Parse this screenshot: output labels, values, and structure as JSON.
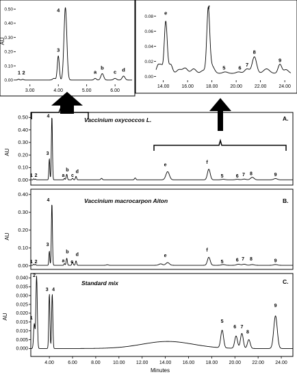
{
  "figure": {
    "x_axis_label": "Minutes",
    "y_axis_label": "AU"
  },
  "chart_data": [
    {
      "id": "inset-left",
      "type": "line",
      "ylabel": "AU",
      "xlim": [
        2.5,
        6.6
      ],
      "ylim": [
        -0.03,
        0.53
      ],
      "xticks": [
        3.0,
        4.0,
        5.0,
        6.0
      ],
      "xtick_labels": [
        "3.00",
        "4.00",
        "5.00",
        "6.00"
      ],
      "yticks": [
        0.0,
        0.1,
        0.2,
        0.3,
        0.4,
        0.5
      ],
      "ytick_labels": [
        "0.00",
        "0.10",
        "0.20",
        "0.30",
        "0.40",
        "0.50"
      ],
      "baseline": 0.0,
      "peaks": [
        [
          2.6,
          0.006,
          0.03
        ],
        [
          2.75,
          0.005,
          0.03
        ],
        [
          3.85,
          0.012,
          0.05
        ],
        [
          4.0,
          0.17,
          0.035
        ],
        [
          4.25,
          0.51,
          0.05
        ],
        [
          5.3,
          0.012,
          0.04
        ],
        [
          5.55,
          0.045,
          0.05
        ],
        [
          6.0,
          0.012,
          0.05
        ],
        [
          6.3,
          0.028,
          0.05
        ]
      ],
      "labels": [
        {
          "text": "1",
          "x": 2.62,
          "y": 0.04
        },
        {
          "text": "2",
          "x": 2.78,
          "y": 0.04
        },
        {
          "text": "3",
          "x": 4.0,
          "y": 0.2
        },
        {
          "text": "4",
          "x": 4.0,
          "y": 0.48
        },
        {
          "text": "a",
          "x": 5.3,
          "y": 0.045
        },
        {
          "text": "b",
          "x": 5.55,
          "y": 0.075
        },
        {
          "text": "c",
          "x": 6.0,
          "y": 0.045
        },
        {
          "text": "d",
          "x": 6.3,
          "y": 0.06
        }
      ]
    },
    {
      "id": "inset-right",
      "type": "line",
      "ylabel": "",
      "xlim": [
        13.4,
        24.5
      ],
      "ylim": [
        -0.005,
        0.095
      ],
      "xticks": [
        14.0,
        16.0,
        18.0,
        20.0,
        22.0,
        24.0
      ],
      "xtick_labels": [
        "14.00",
        "16.00",
        "18.00",
        "20.00",
        "22.00",
        "24.00"
      ],
      "yticks": [
        0.0,
        0.02,
        0.04,
        0.06,
        0.08
      ],
      "ytick_labels": [
        "0.00",
        "0.02",
        "0.04",
        "0.06",
        "0.08"
      ],
      "baseline": 0.004,
      "peaks": [
        [
          13.6,
          0.012,
          0.15
        ],
        [
          13.85,
          0.008,
          0.1
        ],
        [
          14.2,
          0.069,
          0.12
        ],
        [
          14.6,
          0.012,
          0.15
        ],
        [
          15.3,
          0.005,
          0.2
        ],
        [
          15.8,
          0.007,
          0.2
        ],
        [
          16.5,
          0.006,
          0.2
        ],
        [
          17.3,
          0.004,
          0.2
        ],
        [
          17.7,
          0.084,
          0.12
        ],
        [
          18.0,
          0.01,
          0.2
        ],
        [
          19.1,
          0.002,
          0.2
        ],
        [
          20.2,
          0.002,
          0.2
        ],
        [
          20.9,
          0.006,
          0.2
        ],
        [
          21.5,
          0.022,
          0.18
        ],
        [
          22.5,
          0.006,
          0.25
        ],
        [
          23.6,
          0.012,
          0.15
        ],
        [
          24.1,
          0.005,
          0.2
        ]
      ],
      "labels": [
        {
          "text": "e",
          "x": 14.2,
          "y": 0.082
        },
        {
          "text": "f",
          "x": 17.75,
          "y": 0.089
        },
        {
          "text": "5",
          "x": 19.0,
          "y": 0.009
        },
        {
          "text": "6",
          "x": 20.3,
          "y": 0.009
        },
        {
          "text": "7",
          "x": 20.9,
          "y": 0.013
        },
        {
          "text": "8",
          "x": 21.5,
          "y": 0.03
        },
        {
          "text": "9",
          "x": 23.6,
          "y": 0.019
        }
      ]
    },
    {
      "id": "panel-a",
      "type": "line",
      "title": "Vaccinium oxycoccos L.",
      "panel_label": "A.",
      "ylabel": "AU",
      "xlim": [
        2.4,
        25.0
      ],
      "ylim": [
        -0.04,
        0.54
      ],
      "yticks": [
        0.0,
        0.1,
        0.2,
        0.3,
        0.4,
        0.5
      ],
      "ytick_labels": [
        "0.00",
        "0.10",
        "0.20",
        "0.30",
        "0.40",
        "0.50"
      ],
      "baseline": 0.002,
      "peaks": [
        [
          2.65,
          0.008,
          0.04
        ],
        [
          2.8,
          0.006,
          0.04
        ],
        [
          4.0,
          0.17,
          0.04
        ],
        [
          4.22,
          0.51,
          0.045
        ],
        [
          5.3,
          0.012,
          0.04
        ],
        [
          5.5,
          0.045,
          0.05
        ],
        [
          6.0,
          0.012,
          0.05
        ],
        [
          6.3,
          0.028,
          0.05
        ],
        [
          8.5,
          0.012,
          0.06
        ],
        [
          11.4,
          0.015,
          0.06
        ],
        [
          14.2,
          0.065,
          0.15
        ],
        [
          17.75,
          0.085,
          0.12
        ],
        [
          19.0,
          0.004,
          0.15
        ],
        [
          20.2,
          0.004,
          0.15
        ],
        [
          20.8,
          0.006,
          0.15
        ],
        [
          21.5,
          0.02,
          0.15
        ],
        [
          23.5,
          0.01,
          0.15
        ]
      ],
      "labels": [
        {
          "text": "1",
          "x": 2.45,
          "y": 0.025
        },
        {
          "text": "2",
          "x": 2.85,
          "y": 0.025
        },
        {
          "text": "3",
          "x": 3.85,
          "y": 0.2
        },
        {
          "text": "4",
          "x": 3.9,
          "y": 0.5
        },
        {
          "text": "a",
          "x": 5.2,
          "y": 0.025
        },
        {
          "text": "b",
          "x": 5.55,
          "y": 0.07
        },
        {
          "text": "c",
          "x": 6.0,
          "y": 0.025
        },
        {
          "text": "d",
          "x": 6.4,
          "y": 0.055
        },
        {
          "text": "e",
          "x": 14.0,
          "y": 0.11
        },
        {
          "text": "f",
          "x": 17.6,
          "y": 0.13
        },
        {
          "text": "5",
          "x": 18.9,
          "y": 0.02
        },
        {
          "text": "6",
          "x": 20.2,
          "y": 0.02
        },
        {
          "text": "7",
          "x": 20.75,
          "y": 0.03
        },
        {
          "text": "8",
          "x": 21.4,
          "y": 0.04
        },
        {
          "text": "9",
          "x": 23.5,
          "y": 0.03
        }
      ]
    },
    {
      "id": "panel-b",
      "type": "line",
      "title": "Vaccinium macrocarpon Aiton",
      "panel_label": "B.",
      "ylabel": "AU",
      "xlim": [
        2.4,
        25.0
      ],
      "ylim": [
        -0.02,
        0.43
      ],
      "yticks": [
        0.0,
        0.1,
        0.2,
        0.3,
        0.4
      ],
      "ytick_labels": [
        "0.00",
        "0.10",
        "0.20",
        "0.30",
        "0.40"
      ],
      "baseline": 0.003,
      "peaks": [
        [
          2.65,
          0.006,
          0.04
        ],
        [
          2.8,
          0.005,
          0.04
        ],
        [
          4.0,
          0.08,
          0.04
        ],
        [
          4.22,
          0.35,
          0.045
        ],
        [
          5.3,
          0.01,
          0.04
        ],
        [
          5.5,
          0.04,
          0.05
        ],
        [
          6.0,
          0.02,
          0.05
        ],
        [
          6.3,
          0.025,
          0.05
        ],
        [
          9.0,
          0.003,
          0.08
        ],
        [
          13.6,
          0.008,
          0.15
        ],
        [
          14.2,
          0.015,
          0.15
        ],
        [
          17.75,
          0.045,
          0.12
        ],
        [
          19.0,
          0.004,
          0.15
        ],
        [
          20.3,
          0.006,
          0.15
        ],
        [
          20.8,
          0.006,
          0.15
        ],
        [
          21.5,
          0.004,
          0.15
        ],
        [
          23.5,
          0.004,
          0.15
        ]
      ],
      "labels": [
        {
          "text": "1",
          "x": 2.45,
          "y": 0.015
        },
        {
          "text": "2",
          "x": 2.85,
          "y": 0.015
        },
        {
          "text": "3",
          "x": 3.85,
          "y": 0.11
        },
        {
          "text": "4",
          "x": 3.9,
          "y": 0.36
        },
        {
          "text": "a",
          "x": 5.2,
          "y": 0.02
        },
        {
          "text": "b",
          "x": 5.55,
          "y": 0.07
        },
        {
          "text": "c",
          "x": 5.95,
          "y": 0.015
        },
        {
          "text": "d",
          "x": 6.4,
          "y": 0.055
        },
        {
          "text": "e",
          "x": 14.0,
          "y": 0.05
        },
        {
          "text": "f",
          "x": 17.6,
          "y": 0.08
        },
        {
          "text": "5",
          "x": 18.9,
          "y": 0.015
        },
        {
          "text": "6",
          "x": 20.2,
          "y": 0.025
        },
        {
          "text": "7",
          "x": 20.7,
          "y": 0.03
        },
        {
          "text": "8",
          "x": 21.4,
          "y": 0.03
        },
        {
          "text": "9",
          "x": 23.5,
          "y": 0.02
        }
      ]
    },
    {
      "id": "panel-c",
      "type": "line",
      "title": "Standard mix",
      "panel_label": "C.",
      "ylabel": "AU",
      "xlim": [
        2.4,
        25.0
      ],
      "ylim": [
        -0.0045,
        0.0425
      ],
      "xticks": [
        4.0,
        6.0,
        8.0,
        10.0,
        12.0,
        14.0,
        16.0,
        18.0,
        20.0,
        22.0,
        24.0
      ],
      "xtick_labels": [
        "4.00",
        "6.00",
        "8.00",
        "10.00",
        "12.00",
        "14.00",
        "16.00",
        "18.00",
        "20.00",
        "22.00",
        "24.00"
      ],
      "xlabel": "Minutes",
      "yticks": [
        0.0,
        0.005,
        0.01,
        0.015,
        0.02,
        0.025,
        0.03,
        0.035,
        0.04
      ],
      "ytick_labels": [
        "0.000",
        "0.005",
        "0.010",
        "0.015",
        "0.020",
        "0.025",
        "0.030",
        "0.035",
        "0.040"
      ],
      "baseline": 0.0,
      "hump": [
        14.2,
        0.004,
        2.2
      ],
      "peaks": [
        [
          2.7,
          0.014,
          0.06
        ],
        [
          2.9,
          0.041,
          0.06
        ],
        [
          4.0,
          0.031,
          0.05
        ],
        [
          4.25,
          0.031,
          0.05
        ],
        [
          18.9,
          0.01,
          0.12
        ],
        [
          20.1,
          0.007,
          0.12
        ],
        [
          20.6,
          0.0085,
          0.12
        ],
        [
          21.2,
          0.005,
          0.12
        ],
        [
          23.5,
          0.0185,
          0.15
        ]
      ],
      "labels": [
        {
          "text": "1",
          "x": 2.45,
          "y": 0.0165
        },
        {
          "text": "2",
          "x": 2.7,
          "y": 0.0405
        },
        {
          "text": "3",
          "x": 3.8,
          "y": 0.0325
        },
        {
          "text": "4",
          "x": 4.35,
          "y": 0.0325
        },
        {
          "text": "5",
          "x": 18.9,
          "y": 0.0145
        },
        {
          "text": "6",
          "x": 20.0,
          "y": 0.0115
        },
        {
          "text": "7",
          "x": 20.6,
          "y": 0.0115
        },
        {
          "text": "8",
          "x": 21.1,
          "y": 0.0085
        },
        {
          "text": "9",
          "x": 23.5,
          "y": 0.0235
        }
      ]
    }
  ]
}
